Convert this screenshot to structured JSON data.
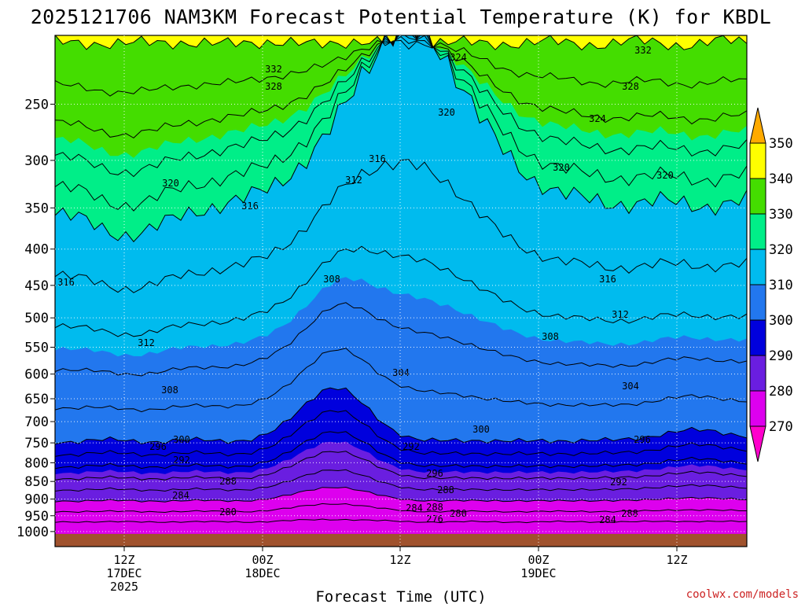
{
  "title": "2025121706 NAM3KM Forecast Potential Temperature (K) for KBDL",
  "credit": "coolwx.com/models",
  "chart_data": {
    "type": "heatmap",
    "title": "2025121706 NAM3KM Forecast Potential Temperature (K) for KBDL",
    "xlabel": "Forecast Time (UTC)",
    "ylabel": "",
    "y_scale": "log",
    "y_ticks": [
      250,
      300,
      350,
      400,
      450,
      500,
      550,
      600,
      650,
      700,
      750,
      800,
      850,
      900,
      950,
      1000
    ],
    "x_ticks": [
      {
        "line1": "12Z",
        "line2": "17DEC",
        "line3": "2025"
      },
      {
        "line1": "00Z",
        "line2": "18DEC",
        "line3": ""
      },
      {
        "line1": "12Z",
        "line2": "",
        "line3": ""
      },
      {
        "line1": "00Z",
        "line2": "19DEC",
        "line3": ""
      },
      {
        "line1": "12Z",
        "line2": "",
        "line3": ""
      }
    ],
    "grid": true,
    "colorbar": {
      "labels": [
        "350",
        "340",
        "330",
        "320",
        "310",
        "300",
        "290",
        "280",
        "270"
      ],
      "bands": [
        {
          "from": 340,
          "to": 350,
          "color": "#ffff00"
        },
        {
          "from": 330,
          "to": 340,
          "color": "#44dd00"
        },
        {
          "from": 320,
          "to": 330,
          "color": "#00ee88"
        },
        {
          "from": 310,
          "to": 320,
          "color": "#00bbee"
        },
        {
          "from": 300,
          "to": 310,
          "color": "#2277ee"
        },
        {
          "from": 290,
          "to": 300,
          "color": "#0000dd"
        },
        {
          "from": 280,
          "to": 290,
          "color": "#6a1ee0"
        },
        {
          "from": 270,
          "to": 280,
          "color": "#dd00ee"
        }
      ],
      "over_color": "#ffaa00",
      "under_color": "#ff00cc"
    },
    "surface_color": "#a0522d",
    "contour_labels": [
      "332",
      "328",
      "324",
      "332",
      "328",
      "324",
      "320",
      "320",
      "316",
      "312",
      "316",
      "320",
      "320",
      "316",
      "308",
      "316",
      "312",
      "312",
      "308",
      "304",
      "304",
      "308",
      "300",
      "300",
      "296",
      "296",
      "292",
      "292",
      "296",
      "288",
      "288",
      "284",
      "292",
      "288",
      "284",
      "280",
      "276",
      "280",
      "284",
      "288"
    ]
  }
}
